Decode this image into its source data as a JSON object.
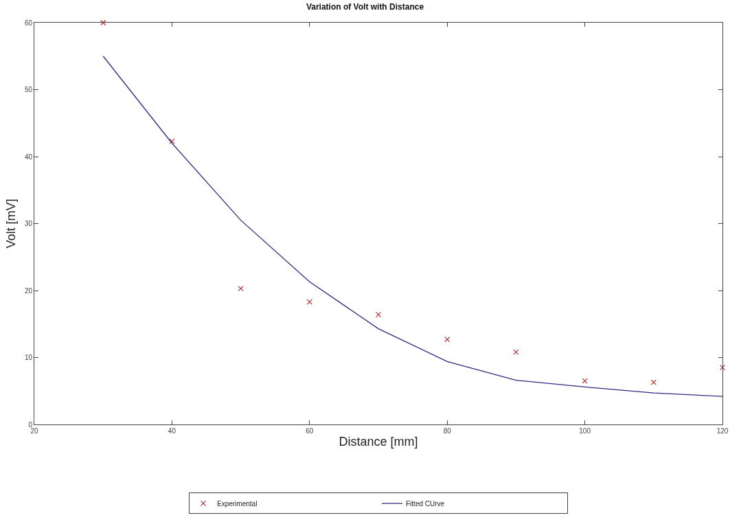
{
  "chart_data": {
    "type": "scatter",
    "title": "Variation of Volt with Distance",
    "xlabel": "Distance [mm]",
    "ylabel": "Volt [mV]",
    "x": [
      30,
      40,
      50,
      60,
      70,
      80,
      90,
      100,
      110,
      120
    ],
    "xlim": [
      20,
      120
    ],
    "xticks": [
      20,
      40,
      60,
      80,
      100,
      120
    ],
    "ylim": [
      0,
      60
    ],
    "yticks": [
      0,
      10,
      20,
      30,
      40,
      50,
      60
    ],
    "series": [
      {
        "name": "Experimental",
        "marker": "cross",
        "color": "#b02a2a",
        "values": [
          60,
          42.3,
          20.3,
          18.3,
          16.4,
          12.7,
          10.8,
          6.5,
          6.3,
          8.5
        ]
      },
      {
        "name": "Fitted CUrve",
        "type": "line",
        "marker": "none",
        "line_style": "solid",
        "color": "#2b2b80",
        "values": [
          55,
          42,
          30.5,
          21.3,
          14.3,
          9.4,
          6.6,
          5.6,
          4.7,
          4.2
        ]
      }
    ],
    "grid": false,
    "legend": "bottom"
  }
}
